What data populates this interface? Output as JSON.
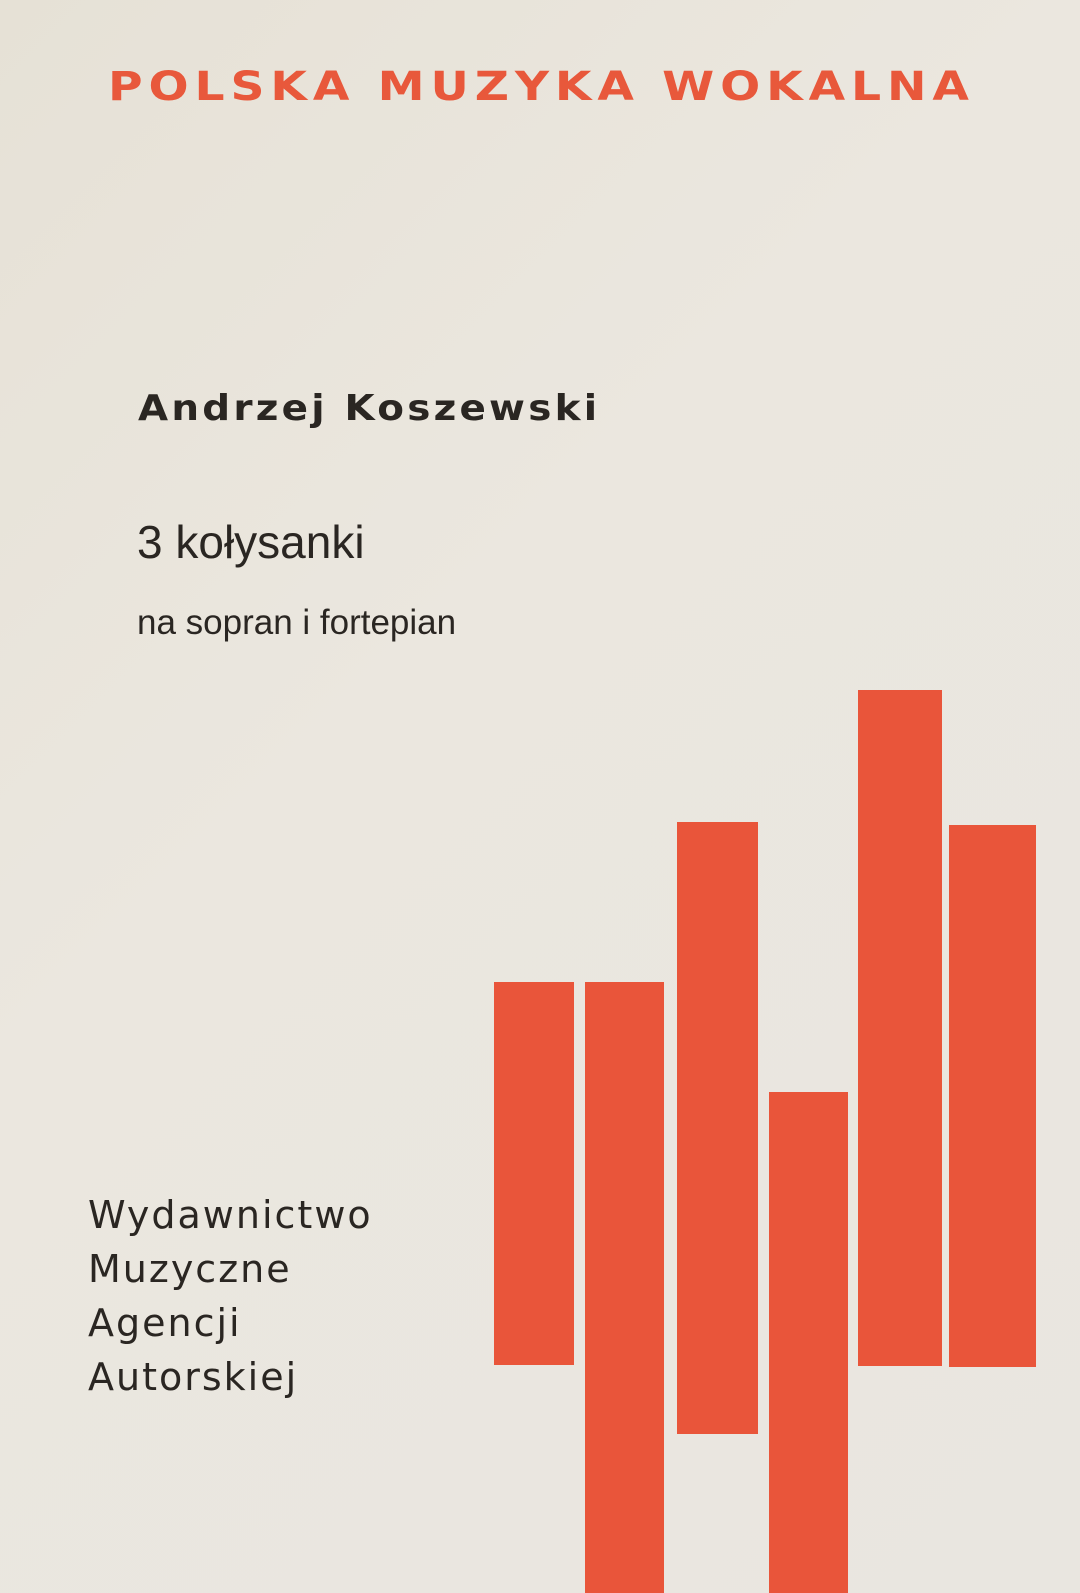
{
  "cover": {
    "series": "POLSKA MUZYKA WOKALNA",
    "author": "Andrzej Koszewski",
    "title": "3 kołysanki",
    "subtitle": "na sopran i fortepian",
    "publisher": [
      "Wydawnictwo",
      "Muzyczne",
      "Agencji",
      "Autorskiej"
    ]
  },
  "colors": {
    "accent": "#e9553a",
    "text": "#2a2622",
    "paper": "#e9e5dd"
  }
}
